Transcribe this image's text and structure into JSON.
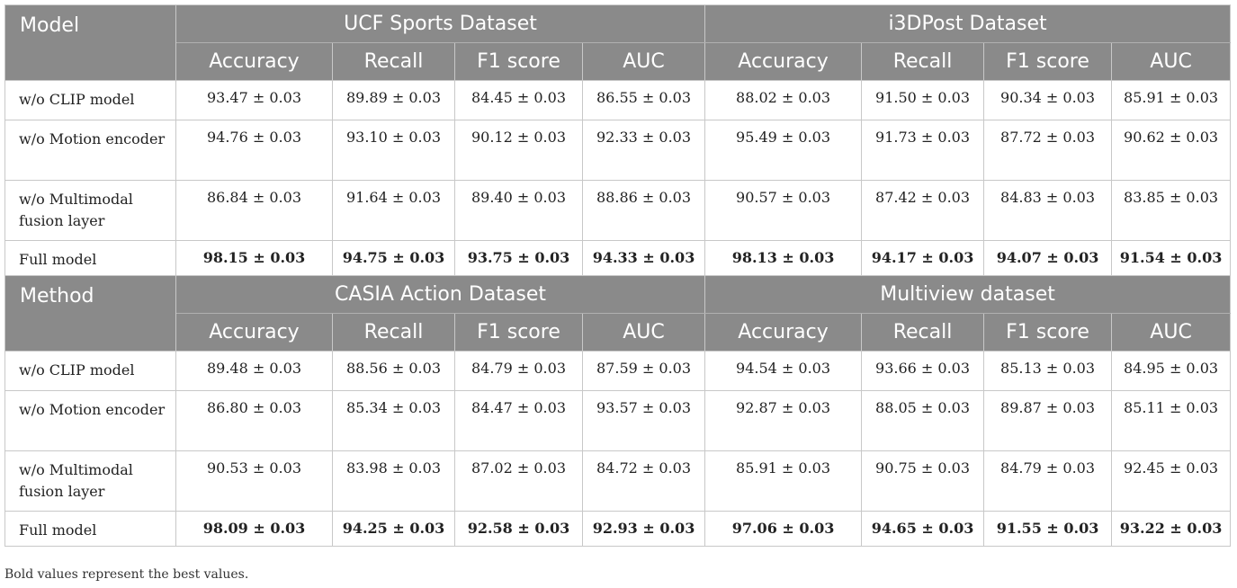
{
  "blocks": [
    {
      "label": "Model",
      "datasets": [
        "UCF Sports Dataset",
        "i3DPost Dataset"
      ],
      "metrics": [
        "Accuracy",
        "Recall",
        "F1 score",
        "AUC"
      ],
      "rows": [
        {
          "name": "w/o CLIP model",
          "values": [
            "93.47 ± 0.03",
            "89.89 ± 0.03",
            "84.45 ± 0.03",
            "86.55 ± 0.03",
            "88.02 ± 0.03",
            "91.50 ± 0.03",
            "90.34 ± 0.03",
            "85.91 ± 0.03"
          ]
        },
        {
          "name": "w/o Motion encoder",
          "values": [
            "94.76 ± 0.03",
            "93.10 ± 0.03",
            "90.12 ± 0.03",
            "92.33 ± 0.03",
            "95.49 ± 0.03",
            "91.73 ± 0.03",
            "87.72 ± 0.03",
            "90.62 ± 0.03"
          ]
        },
        {
          "name": "w/o Multimodal fusion layer",
          "values": [
            "86.84 ± 0.03",
            "91.64 ± 0.03",
            "89.40 ± 0.03",
            "88.86 ± 0.03",
            "90.57 ± 0.03",
            "87.42 ± 0.03",
            "84.83 ± 0.03",
            "83.85 ± 0.03"
          ]
        },
        {
          "name": "Full model",
          "values": [
            "98.15 ± 0.03",
            "94.75 ± 0.03",
            "93.75 ± 0.03",
            "94.33 ± 0.03",
            "98.13 ± 0.03",
            "94.17 ± 0.03",
            "94.07 ± 0.03",
            "91.54 ± 0.03"
          ]
        }
      ]
    },
    {
      "label": "Method",
      "datasets": [
        "CASIA Action Dataset",
        "Multiview dataset"
      ],
      "metrics": [
        "Accuracy",
        "Recall",
        "F1 score",
        "AUC"
      ],
      "rows": [
        {
          "name": "w/o CLIP model",
          "values": [
            "89.48 ± 0.03",
            "88.56 ± 0.03",
            "84.79 ± 0.03",
            "87.59 ± 0.03",
            "94.54 ± 0.03",
            "93.66 ± 0.03",
            "85.13 ± 0.03",
            "84.95 ± 0.03"
          ]
        },
        {
          "name": "w/o Motion encoder",
          "values": [
            "86.80 ± 0.03",
            "85.34 ± 0.03",
            "84.47 ± 0.03",
            "93.57 ± 0.03",
            "92.87 ± 0.03",
            "88.05 ± 0.03",
            "89.87 ± 0.03",
            "85.11 ± 0.03"
          ]
        },
        {
          "name": "w/o Multimodal fusion layer",
          "values": [
            "90.53 ± 0.03",
            "83.98 ± 0.03",
            "87.02 ± 0.03",
            "84.72 ± 0.03",
            "85.91 ± 0.03",
            "90.75 ± 0.03",
            "84.79 ± 0.03",
            "92.45 ± 0.03"
          ]
        },
        {
          "name": "Full model",
          "values": [
            "98.09 ± 0.03",
            "94.25 ± 0.03",
            "92.58 ± 0.03",
            "92.93 ± 0.03",
            "97.06 ± 0.03",
            "94.65 ± 0.03",
            "91.55 ± 0.03",
            "93.22 ± 0.03"
          ]
        }
      ]
    }
  ],
  "footnote": "Bold values represent the best values."
}
